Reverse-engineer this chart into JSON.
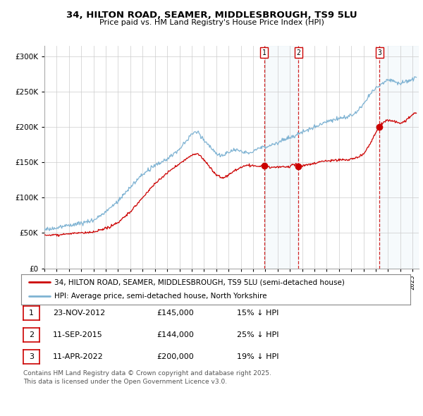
{
  "title_line1": "34, HILTON ROAD, SEAMER, MIDDLESBROUGH, TS9 5LU",
  "title_line2": "Price paid vs. HM Land Registry's House Price Index (HPI)",
  "ytick_values": [
    0,
    50000,
    100000,
    150000,
    200000,
    250000,
    300000
  ],
  "ytick_labels": [
    "£0",
    "£50K",
    "£100K",
    "£150K",
    "£200K",
    "£250K",
    "£300K"
  ],
  "ylim": [
    0,
    315000
  ],
  "xlim_start": 1995.0,
  "xlim_end": 2025.5,
  "legend_line1": "34, HILTON ROAD, SEAMER, MIDDLESBROUGH, TS9 5LU (semi-detached house)",
  "legend_line2": "HPI: Average price, semi-detached house, North Yorkshire",
  "transactions": [
    {
      "num": 1,
      "date": "23-NOV-2012",
      "price": 145000,
      "pct": "15%",
      "year": 2012.9
    },
    {
      "num": 2,
      "date": "11-SEP-2015",
      "price": 144000,
      "pct": "25%",
      "year": 2015.7
    },
    {
      "num": 3,
      "date": "11-APR-2022",
      "price": 200000,
      "pct": "19%",
      "year": 2022.3
    }
  ],
  "footnote_line1": "Contains HM Land Registry data © Crown copyright and database right 2025.",
  "footnote_line2": "This data is licensed under the Open Government Licence v3.0.",
  "red_color": "#cc0000",
  "blue_color": "#7fb3d3",
  "shade_color": "#dceef7",
  "background_color": "#ffffff",
  "grid_color": "#cccccc"
}
